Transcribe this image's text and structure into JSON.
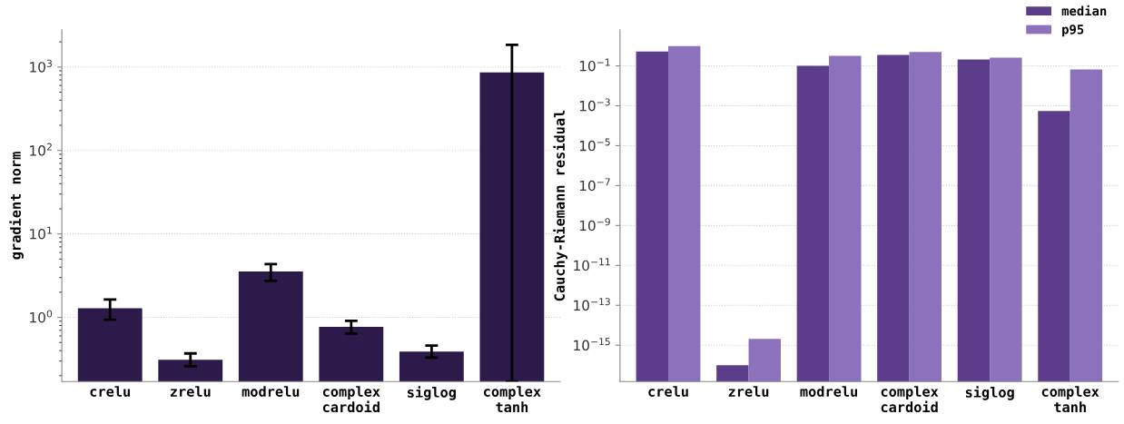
{
  "chart_data": [
    {
      "type": "bar",
      "ylabel": "gradient norm",
      "categories": [
        "crelu",
        "zrelu",
        "modrelu",
        "complex\ncardoid",
        "siglog",
        "complex\ntanh"
      ],
      "values": [
        1.29,
        0.31,
        3.54,
        0.77,
        0.39,
        861
      ],
      "errors": [
        [
          0.94,
          1.64
        ],
        [
          0.26,
          0.37
        ],
        [
          2.74,
          4.36
        ],
        [
          0.64,
          0.91
        ],
        [
          0.33,
          0.46
        ],
        [
          0.17,
          1845
        ]
      ],
      "color": "#2b1a4a",
      "log": "y",
      "ylim": [
        0.17,
        2800
      ],
      "yticks": [
        {
          "value": 1,
          "label": "10$^{0}$"
        },
        {
          "value": 10,
          "label": "10$^{1}$"
        },
        {
          "value": 100,
          "label": "10$^{2}$"
        },
        {
          "value": 1000,
          "label": "10$^{3}$"
        }
      ],
      "grid": "y"
    },
    {
      "type": "bar",
      "ylabel": "Cauchy-Riemann residual",
      "categories": [
        "crelu",
        "zrelu",
        "modrelu",
        "complex\ncardoid",
        "siglog",
        "complex\ntanh"
      ],
      "series": [
        {
          "name": "median",
          "color": "#5b3d8c",
          "values": [
            0.52,
            1e-16,
            0.1,
            0.35,
            0.21,
            0.00055
          ]
        },
        {
          "name": "p95",
          "color": "#8c72bd",
          "values": [
            0.99,
            2.1e-15,
            0.32,
            0.49,
            0.26,
            0.066
          ]
        }
      ],
      "log": "y",
      "ylim": [
        1.5e-17,
        6.5
      ],
      "yticks": [
        {
          "value": 0.1,
          "label": "10$^{−1}$"
        },
        {
          "value": 0.001,
          "label": "10$^{−3}$"
        },
        {
          "value": 1e-05,
          "label": "10$^{−5}$"
        },
        {
          "value": 1e-07,
          "label": "10$^{−7}$"
        },
        {
          "value": 1e-09,
          "label": "10$^{−9}$"
        },
        {
          "value": 1e-11,
          "label": "10$^{−11}$"
        },
        {
          "value": 1e-13,
          "label": "10$^{−13}$"
        },
        {
          "value": 1e-15,
          "label": "10$^{−15}$"
        }
      ],
      "grid": "y",
      "legend": "top right"
    }
  ]
}
